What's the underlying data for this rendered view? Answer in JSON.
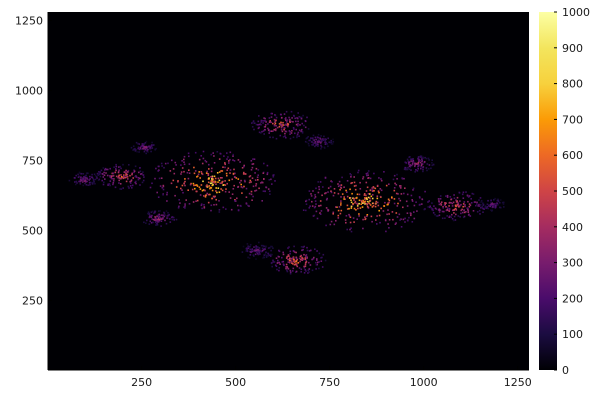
{
  "chart_data": {
    "type": "heatmap",
    "title": "",
    "xlabel": "",
    "ylabel": "",
    "xlim": [
      1,
      1280
    ],
    "ylim": [
      1,
      1280
    ],
    "x_ticks": [
      250,
      500,
      750,
      1000,
      1250
    ],
    "y_ticks": [
      250,
      500,
      750,
      1000,
      1250
    ],
    "grid": false,
    "colormap": "inferno",
    "colorbar": {
      "placement": "right",
      "range": [
        0,
        1000
      ],
      "ticks": [
        0,
        100,
        200,
        300,
        400,
        500,
        600,
        700,
        800,
        900,
        1000
      ]
    },
    "background_color": "#000004",
    "hotspots": [
      {
        "x": 440,
        "y": 675,
        "intensity": 1000,
        "spread": 150
      },
      {
        "x": 840,
        "y": 605,
        "intensity": 1000,
        "spread": 150
      },
      {
        "x": 195,
        "y": 695,
        "intensity": 700,
        "spread": 60
      },
      {
        "x": 620,
        "y": 880,
        "intensity": 700,
        "spread": 70
      },
      {
        "x": 660,
        "y": 395,
        "intensity": 700,
        "spread": 70
      },
      {
        "x": 1085,
        "y": 590,
        "intensity": 700,
        "spread": 70
      },
      {
        "x": 295,
        "y": 545,
        "intensity": 500,
        "spread": 40
      },
      {
        "x": 980,
        "y": 740,
        "intensity": 500,
        "spread": 40
      },
      {
        "x": 255,
        "y": 800,
        "intensity": 400,
        "spread": 30
      },
      {
        "x": 95,
        "y": 685,
        "intensity": 400,
        "spread": 35
      },
      {
        "x": 1180,
        "y": 595,
        "intensity": 350,
        "spread": 30
      },
      {
        "x": 555,
        "y": 430,
        "intensity": 350,
        "spread": 40
      },
      {
        "x": 720,
        "y": 820,
        "intensity": 350,
        "spread": 35
      }
    ]
  }
}
